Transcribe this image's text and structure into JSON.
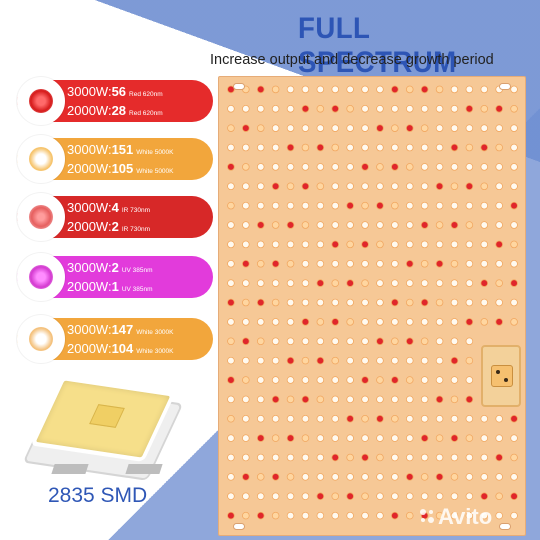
{
  "header": {
    "title": "FULL SPECTRUM",
    "subtitle": "Increase output and decrease growth period"
  },
  "specs": [
    {
      "line1_prefix": "3000W:",
      "line1_value": "56",
      "line1_note": "Red 620nm",
      "line2_prefix": "2000W:",
      "line2_value": "28",
      "line2_note": "Red 620nm"
    },
    {
      "line1_prefix": "3000W:",
      "line1_value": "151",
      "line1_note": "White 5000K",
      "line2_prefix": "2000W:",
      "line2_value": "105",
      "line2_note": "White 5000K"
    },
    {
      "line1_prefix": "3000W:",
      "line1_value": "4",
      "line1_note": "IR 730nm",
      "line2_prefix": "2000W:",
      "line2_value": "2",
      "line2_note": "IR 730nm"
    },
    {
      "line1_prefix": "3000W:",
      "line1_value": "2",
      "line1_note": "UV 385nm",
      "line2_prefix": "2000W:",
      "line2_value": "1",
      "line2_note": "UV 385nm"
    },
    {
      "line1_prefix": "3000W:",
      "line1_value": "147",
      "line1_note": "White 3000K",
      "line2_prefix": "2000W:",
      "line2_value": "104",
      "line2_note": "White 3000K"
    }
  ],
  "chip": {
    "label": "2835 SMD"
  },
  "watermark": {
    "text": "Avito"
  },
  "colors": {
    "title_blue": "#2d55b5",
    "panel_orange": "#f6c896",
    "red_led": "#e0262b",
    "white_led": "#fffaf0",
    "warm_led": "#ffd6a0"
  }
}
